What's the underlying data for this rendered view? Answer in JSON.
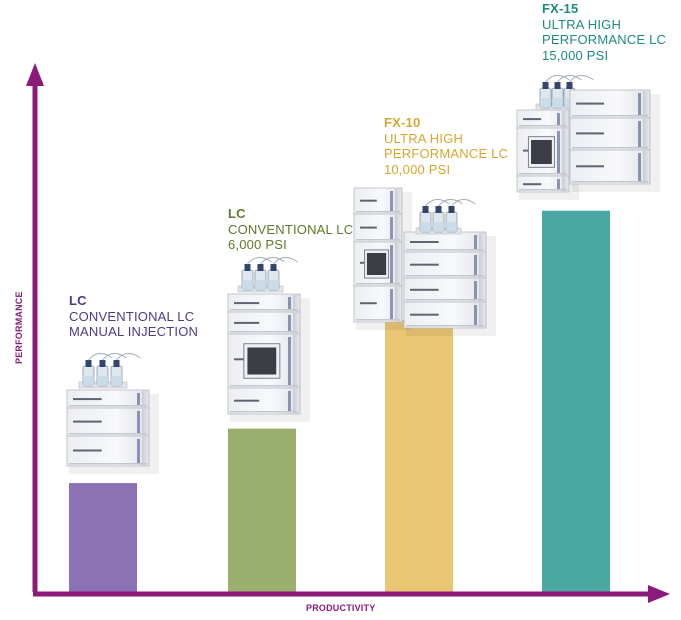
{
  "chart_data": {
    "type": "bar",
    "xlabel": "PRODUCTIVITY",
    "ylabel": "PERFORMANCE",
    "categories": [
      "LC CONVENTIONAL LC MANUAL INJECTION",
      "LC CONVENTIONAL LC 6,000 PSI",
      "FX-10 ULTRA HIGH PERFORMANCE LC 10,000 PSI",
      "FX-15 ULTRA HIGH PERFORMANCE LC 15,000 PSI"
    ],
    "values": [
      1,
      1.5,
      2.5,
      3.5
    ],
    "ylim": [
      0,
      4.7
    ],
    "grid": false,
    "bars": [
      {
        "title": "LC",
        "lines": [
          "CONVENTIONAL LC",
          "MANUAL INJECTION"
        ],
        "color": "#8a72b5",
        "label_color": "#4b3a8c",
        "value": 1
      },
      {
        "title": "LC",
        "lines": [
          "CONVENTIONAL LC",
          "6,000 PSI"
        ],
        "color": "#9aae6e",
        "label_color": "#5e7a2a",
        "value": 1.5
      },
      {
        "title": "FX-10",
        "lines": [
          "ULTRA HIGH",
          "PERFORMANCE LC",
          "10,000 PSI"
        ],
        "color": "#e9c673",
        "label_color": "#d8a62c",
        "value": 2.5
      },
      {
        "title": "FX-15",
        "lines": [
          "ULTRA HIGH",
          "PERFORMANCE LC",
          "15,000 PSI"
        ],
        "color": "#4aa7a2",
        "label_color": "#1d8a85",
        "value": 3.5
      }
    ],
    "axis_color": "#8b1a7a"
  }
}
